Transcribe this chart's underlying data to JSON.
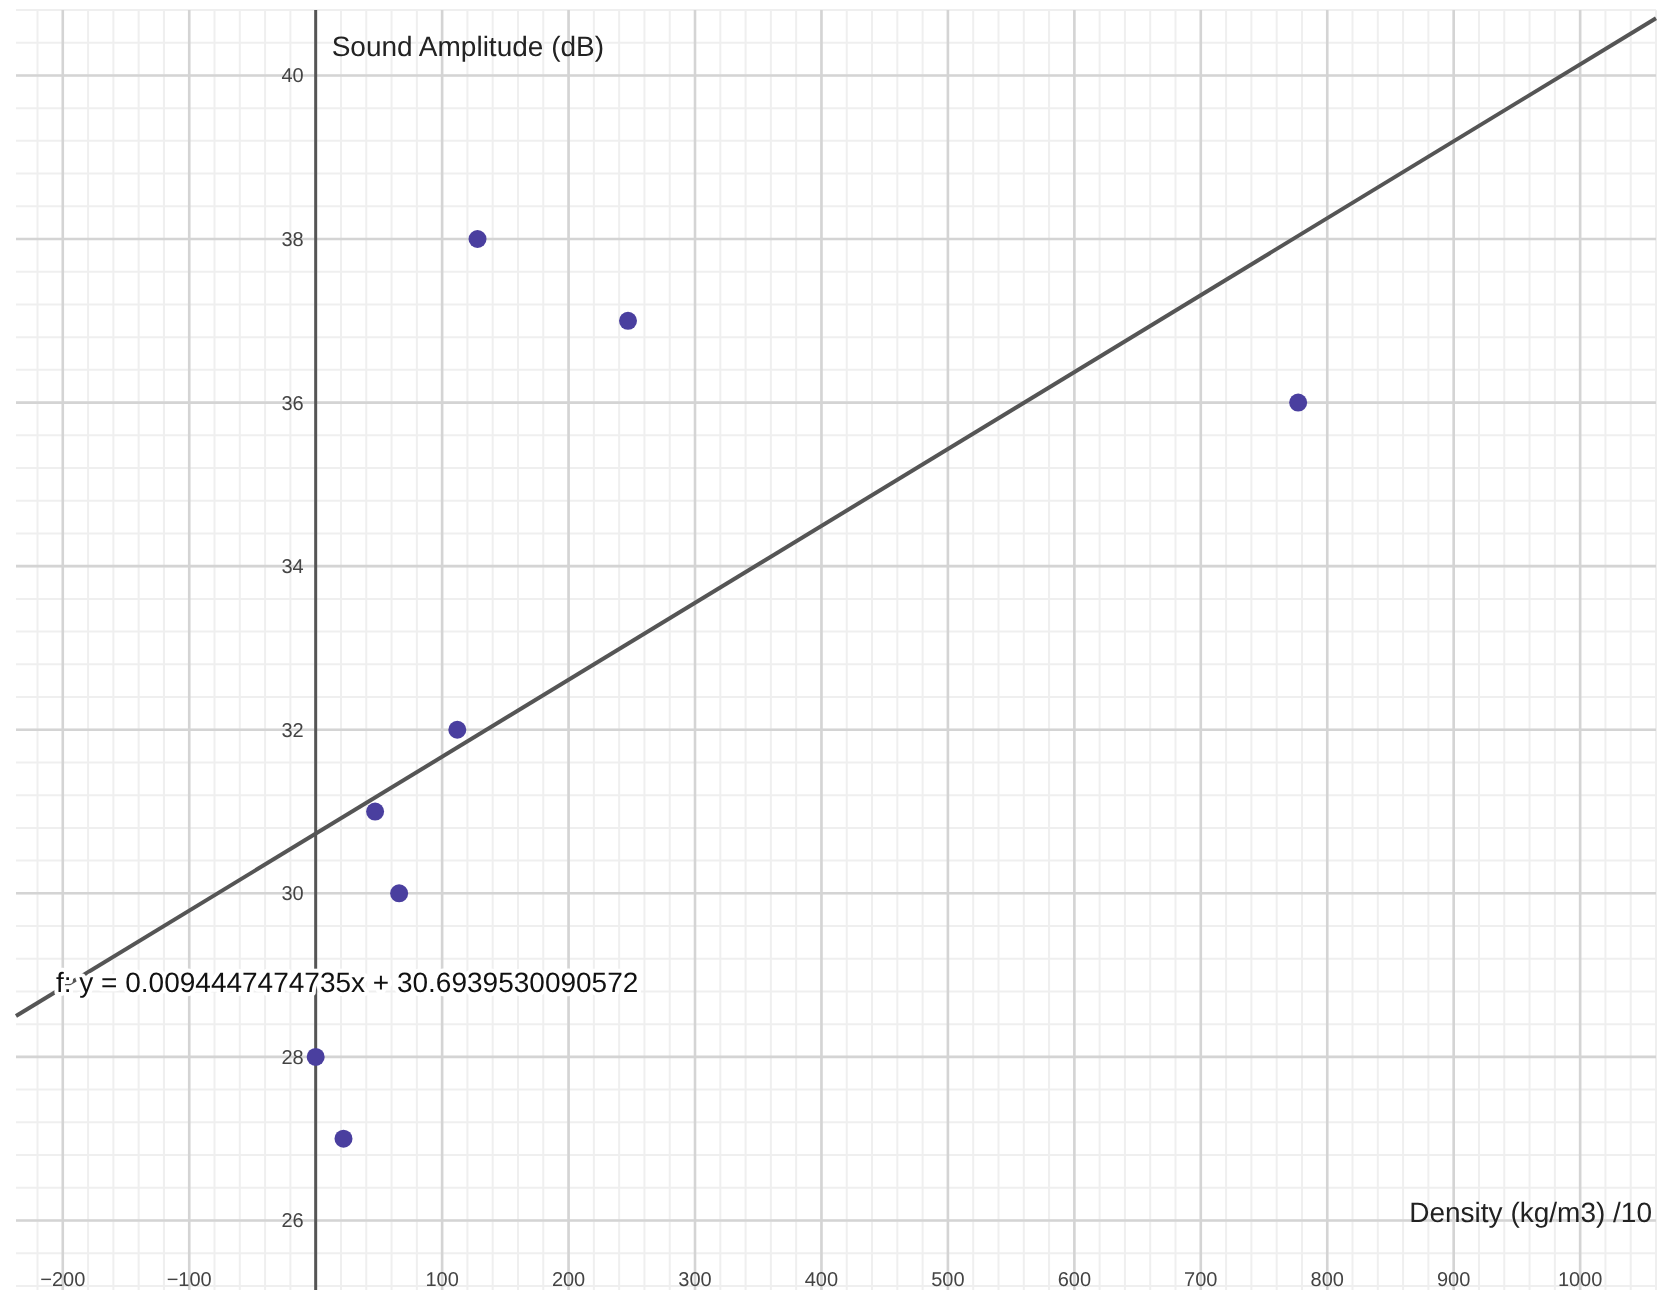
{
  "chart_data": {
    "type": "scatter",
    "xlabel": "Density (kg/m3) /10",
    "ylabel": "Sound Amplitude (dB)",
    "xlim": [
      -237,
      1060
    ],
    "ylim": [
      25.15,
      40.8
    ],
    "xticks": [
      -200,
      -100,
      100,
      200,
      300,
      400,
      500,
      600,
      700,
      800,
      900,
      1000
    ],
    "yticks": [
      26,
      28,
      30,
      32,
      34,
      36,
      38,
      40
    ],
    "grid": true,
    "marker": "circle",
    "series": [
      {
        "color": "#4a3f9f",
        "x": [
          0,
          22,
          47,
          66,
          112,
          128,
          247,
          777
        ],
        "values": [
          28,
          27,
          31,
          30,
          32,
          38,
          37,
          36
        ]
      },
      {
        "type": "line",
        "color": "#555555",
        "marker": "none",
        "line_style": "solid",
        "x": [
          -237,
          1060
        ],
        "values": [
          28.5,
          40.7
        ]
      }
    ],
    "annotations": [
      "f: y = 0.0094447474735x + 30.6939530090572"
    ]
  }
}
